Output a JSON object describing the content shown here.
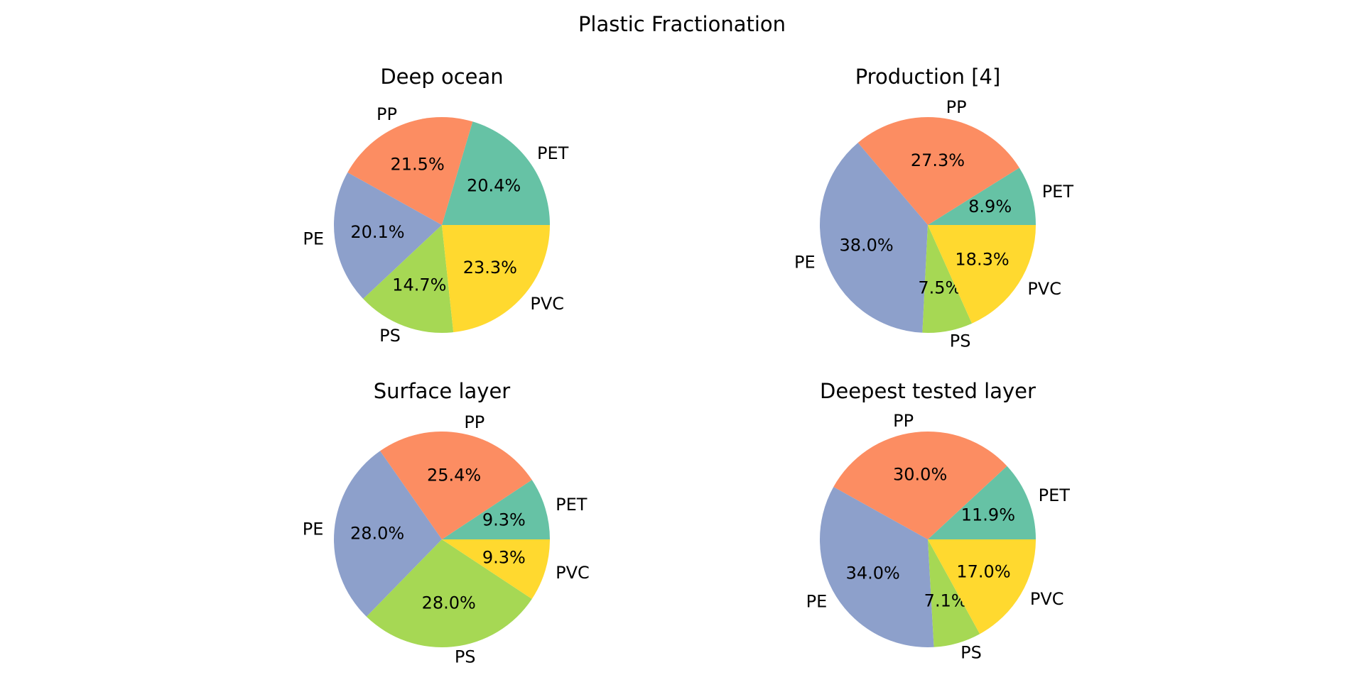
{
  "figure": {
    "title": "Plastic Fractionation"
  },
  "colors": {
    "PET": "#66c2a5",
    "PP": "#fc8d62",
    "PE": "#8da0cb",
    "PS": "#a6d854",
    "PVC": "#ffd92f"
  },
  "chart_data": [
    {
      "type": "pie",
      "title": "Deep ocean",
      "labels": [
        "PET",
        "PP",
        "PE",
        "PS",
        "PVC"
      ],
      "values": [
        20.4,
        21.5,
        20.1,
        14.7,
        23.3
      ],
      "value_labels": [
        "20.4%",
        "21.5%",
        "20.1%",
        "14.7%",
        "23.3%"
      ],
      "start_angle_deg": 0,
      "direction": "counterclockwise"
    },
    {
      "type": "pie",
      "title": "Production [4]",
      "labels": [
        "PET",
        "PP",
        "PE",
        "PS",
        "PVC"
      ],
      "values": [
        8.9,
        27.3,
        38.0,
        7.5,
        18.3
      ],
      "value_labels": [
        "8.9%",
        "27.3%",
        "38.0%",
        "7.5%",
        "18.3%"
      ],
      "start_angle_deg": 0,
      "direction": "counterclockwise"
    },
    {
      "type": "pie",
      "title": "Surface layer",
      "labels": [
        "PET",
        "PP",
        "PE",
        "PS",
        "PVC"
      ],
      "values": [
        9.3,
        25.4,
        28.0,
        28.0,
        9.3
      ],
      "value_labels": [
        "9.3%",
        "25.4%",
        "28.0%",
        "28.0%",
        "9.3%"
      ],
      "start_angle_deg": 0,
      "direction": "counterclockwise"
    },
    {
      "type": "pie",
      "title": "Deepest tested layer",
      "labels": [
        "PET",
        "PP",
        "PE",
        "PS",
        "PVC"
      ],
      "values": [
        11.9,
        30.0,
        34.0,
        7.1,
        17.0
      ],
      "value_labels": [
        "11.9%",
        "30.0%",
        "34.0%",
        "7.1%",
        "17.0%"
      ],
      "start_angle_deg": 0,
      "direction": "counterclockwise"
    }
  ]
}
